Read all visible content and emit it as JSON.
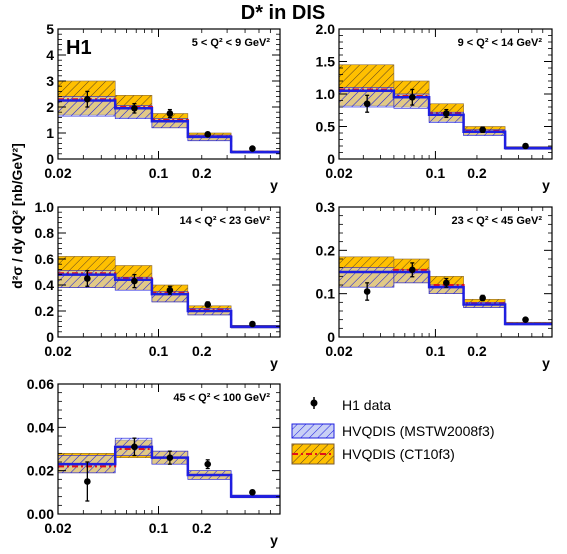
{
  "figure": {
    "title": "D* in DIS",
    "experiment": "H1",
    "ylabel": "d²σ / dy dQ² [nb/GeV²]",
    "colors": {
      "mstw_line": "#1f1fe0",
      "mstw_fill": "#c8cff5",
      "mstw_hatch": "#1f1fe0",
      "ct10_line": "#e0121a",
      "ct10_fill": "#ffc000",
      "ct10_hatch": "#5a4020",
      "data": "#000000"
    }
  },
  "legend": [
    {
      "label": "H1 data",
      "marker": "point"
    },
    {
      "label": "HVQDIS (MSTW2008f3)",
      "marker": "mstw-box"
    },
    {
      "label": "HVQDIS (CT10f3)",
      "marker": "ct10-box"
    }
  ],
  "chart_data": [
    {
      "type": "line",
      "xscale": "log",
      "xlabel": "y",
      "xticks": [
        "0.02",
        "0.1",
        "0.2"
      ],
      "range_label": "5 < Q² < 9 GeV²",
      "ylim": [
        0,
        5
      ],
      "yticks": [
        "0",
        "1",
        "2",
        "3",
        "4",
        "5"
      ],
      "bin_edges": [
        0.02,
        0.05,
        0.09,
        0.16,
        0.32,
        0.7
      ],
      "data_x": [
        0.032,
        0.068,
        0.12,
        0.22,
        0.45
      ],
      "data_y": [
        2.3,
        1.95,
        1.75,
        0.95,
        0.4
      ],
      "data_err": [
        0.3,
        0.18,
        0.15,
        0.08,
        0.05
      ],
      "series": [
        {
          "name": "HVQDIS (MSTW2008f3)",
          "central": [
            2.25,
            1.95,
            1.45,
            0.85,
            0.27
          ],
          "lo": [
            1.65,
            1.55,
            1.2,
            0.7,
            0.23
          ],
          "hi": [
            2.4,
            2.05,
            1.55,
            0.92,
            0.29
          ]
        },
        {
          "name": "HVQDIS (CT10f3)",
          "central": [
            2.3,
            2.0,
            1.5,
            0.87,
            0.28
          ],
          "lo": [
            1.7,
            1.6,
            1.2,
            0.72,
            0.23
          ],
          "hi": [
            3.0,
            2.45,
            1.75,
            1.0,
            0.31
          ]
        }
      ]
    },
    {
      "type": "line",
      "xscale": "log",
      "xlabel": "y",
      "xticks": [
        "0.02",
        "0.1",
        "0.2"
      ],
      "range_label": "9 < Q² < 14 GeV²",
      "ylim": [
        0,
        2
      ],
      "yticks": [
        "0",
        "0.5",
        "1.0",
        "1.5",
        "2.0"
      ],
      "bin_edges": [
        0.02,
        0.05,
        0.09,
        0.16,
        0.32,
        0.7
      ],
      "data_x": [
        0.032,
        0.068,
        0.12,
        0.22,
        0.45
      ],
      "data_y": [
        0.85,
        0.95,
        0.7,
        0.45,
        0.2
      ],
      "data_err": [
        0.13,
        0.12,
        0.06,
        0.04,
        0.02
      ],
      "series": [
        {
          "name": "HVQDIS (MSTW2008f3)",
          "central": [
            1.05,
            0.95,
            0.68,
            0.42,
            0.17
          ],
          "lo": [
            0.8,
            0.78,
            0.56,
            0.36,
            0.15
          ],
          "hi": [
            1.1,
            1.0,
            0.72,
            0.45,
            0.18
          ]
        },
        {
          "name": "HVQDIS (CT10f3)",
          "central": [
            1.07,
            0.97,
            0.7,
            0.43,
            0.17
          ],
          "lo": [
            0.82,
            0.8,
            0.58,
            0.37,
            0.15
          ],
          "hi": [
            1.45,
            1.2,
            0.85,
            0.5,
            0.19
          ]
        }
      ]
    },
    {
      "type": "line",
      "xscale": "log",
      "xlabel": "y",
      "xticks": [
        "0.02",
        "0.1",
        "0.2"
      ],
      "range_label": "14 < Q² < 23 GeV²",
      "ylim": [
        0,
        1
      ],
      "yticks": [
        "0",
        "0.2",
        "0.4",
        "0.6",
        "0.8",
        "1.0"
      ],
      "bin_edges": [
        0.02,
        0.05,
        0.09,
        0.16,
        0.32,
        0.7
      ],
      "data_x": [
        0.032,
        0.068,
        0.12,
        0.22,
        0.45
      ],
      "data_y": [
        0.45,
        0.43,
        0.36,
        0.25,
        0.1
      ],
      "data_err": [
        0.06,
        0.05,
        0.03,
        0.02,
        0.01
      ],
      "series": [
        {
          "name": "HVQDIS (MSTW2008f3)",
          "central": [
            0.48,
            0.44,
            0.33,
            0.2,
            0.08
          ],
          "lo": [
            0.38,
            0.36,
            0.27,
            0.17,
            0.07
          ],
          "hi": [
            0.51,
            0.46,
            0.35,
            0.22,
            0.085
          ]
        },
        {
          "name": "HVQDIS (CT10f3)",
          "central": [
            0.49,
            0.45,
            0.34,
            0.21,
            0.08
          ],
          "lo": [
            0.38,
            0.36,
            0.27,
            0.17,
            0.07
          ],
          "hi": [
            0.62,
            0.55,
            0.4,
            0.24,
            0.09
          ]
        }
      ]
    },
    {
      "type": "line",
      "xscale": "log",
      "xlabel": "y",
      "xticks": [
        "0.02",
        "0.1",
        "0.2"
      ],
      "range_label": "23 < Q² < 45 GeV²",
      "ylim": [
        0,
        0.3
      ],
      "yticks": [
        "0",
        "0.1",
        "0.2",
        "0.3"
      ],
      "bin_edges": [
        0.02,
        0.05,
        0.09,
        0.16,
        0.32,
        0.7
      ],
      "data_x": [
        0.032,
        0.068,
        0.12,
        0.22,
        0.45
      ],
      "data_y": [
        0.105,
        0.155,
        0.125,
        0.09,
        0.04
      ],
      "data_err": [
        0.02,
        0.016,
        0.01,
        0.006,
        0.003
      ],
      "series": [
        {
          "name": "HVQDIS (MSTW2008f3)",
          "central": [
            0.15,
            0.15,
            0.115,
            0.075,
            0.03
          ],
          "lo": [
            0.115,
            0.125,
            0.1,
            0.068,
            0.028
          ],
          "hi": [
            0.16,
            0.155,
            0.12,
            0.08,
            0.032
          ]
        },
        {
          "name": "HVQDIS (CT10f3)",
          "central": [
            0.15,
            0.155,
            0.12,
            0.077,
            0.031
          ],
          "lo": [
            0.115,
            0.125,
            0.1,
            0.068,
            0.028
          ],
          "hi": [
            0.185,
            0.18,
            0.14,
            0.087,
            0.034
          ]
        }
      ]
    },
    {
      "type": "line",
      "xscale": "log",
      "xlabel": "y",
      "xticks": [
        "0.02",
        "0.1",
        "0.2"
      ],
      "range_label": "45 < Q² < 100 GeV²",
      "ylim": [
        0,
        0.06
      ],
      "yticks": [
        "0.00",
        "0.02",
        "0.04",
        "0.06"
      ],
      "bin_edges": [
        0.02,
        0.05,
        0.09,
        0.16,
        0.32,
        0.7
      ],
      "data_x": [
        0.032,
        0.068,
        0.12,
        0.22,
        0.45
      ],
      "data_y": [
        0.015,
        0.031,
        0.026,
        0.023,
        0.01
      ],
      "data_err": [
        0.009,
        0.004,
        0.003,
        0.002,
        0.001
      ],
      "series": [
        {
          "name": "HVQDIS (MSTW2008f3)",
          "central": [
            0.023,
            0.031,
            0.026,
            0.018,
            0.008
          ],
          "lo": [
            0.019,
            0.027,
            0.023,
            0.016,
            0.0075
          ],
          "hi": [
            0.027,
            0.035,
            0.029,
            0.02,
            0.0087
          ]
        },
        {
          "name": "HVQDIS (CT10f3)",
          "central": [
            0.022,
            0.03,
            0.026,
            0.018,
            0.008
          ],
          "lo": [
            0.019,
            0.026,
            0.023,
            0.016,
            0.0075
          ],
          "hi": [
            0.028,
            0.034,
            0.029,
            0.02,
            0.0087
          ]
        }
      ]
    }
  ]
}
